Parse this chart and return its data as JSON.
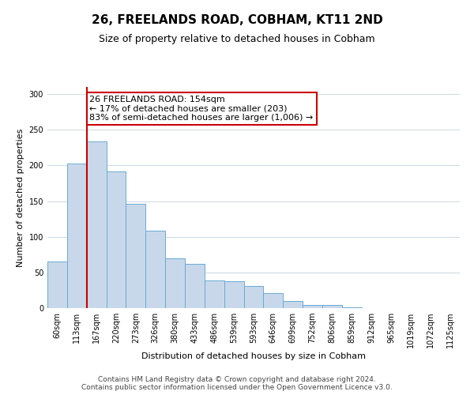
{
  "title": "26, FREELANDS ROAD, COBHAM, KT11 2ND",
  "subtitle": "Size of property relative to detached houses in Cobham",
  "xlabel": "Distribution of detached houses by size in Cobham",
  "ylabel": "Number of detached properties",
  "bin_labels": [
    "60sqm",
    "113sqm",
    "167sqm",
    "220sqm",
    "273sqm",
    "326sqm",
    "380sqm",
    "433sqm",
    "486sqm",
    "539sqm",
    "593sqm",
    "646sqm",
    "699sqm",
    "752sqm",
    "806sqm",
    "859sqm",
    "912sqm",
    "965sqm",
    "1019sqm",
    "1072sqm",
    "1125sqm"
  ],
  "bar_values": [
    65,
    203,
    234,
    191,
    146,
    108,
    70,
    62,
    39,
    38,
    31,
    21,
    10,
    4,
    4,
    1,
    0,
    0,
    0,
    0,
    0
  ],
  "bar_color": "#c8d8ea",
  "bar_edge_color": "#6aaad4",
  "vline_x_index": 2,
  "vline_color": "#cc0000",
  "annotation_text": "26 FREELANDS ROAD: 154sqm\n← 17% of detached houses are smaller (203)\n83% of semi-detached houses are larger (1,006) →",
  "annotation_box_color": "#ffffff",
  "annotation_box_edge_color": "#cc0000",
  "ylim": [
    0,
    310
  ],
  "yticks": [
    0,
    50,
    100,
    150,
    200,
    250,
    300
  ],
  "footer_line1": "Contains HM Land Registry data © Crown copyright and database right 2024.",
  "footer_line2": "Contains public sector information licensed under the Open Government Licence v3.0.",
  "background_color": "#ffffff",
  "grid_color": "#d0dce8",
  "title_fontsize": 11,
  "subtitle_fontsize": 9,
  "axis_label_fontsize": 8,
  "tick_label_fontsize": 7,
  "annotation_fontsize": 8,
  "footer_fontsize": 6.5
}
